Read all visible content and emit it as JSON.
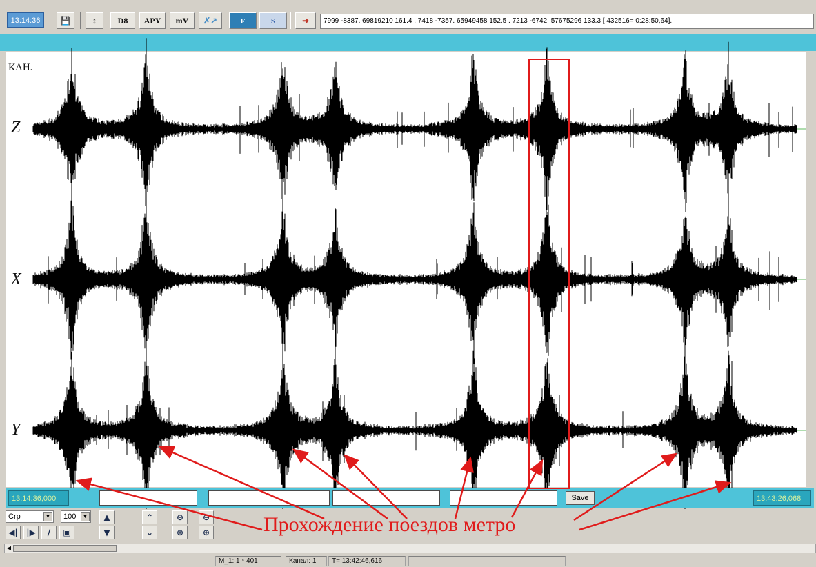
{
  "toolbar": {
    "time": "13:14:36",
    "buttons": [
      "D8",
      "APY",
      "mV"
    ],
    "info_text": "7999 -8387. 69819210  161.4 . 7418 -7357. 65949458  152.5 . 7213 -6742. 57675296  133.3 [ 432516= 0:28:50,64]."
  },
  "plot": {
    "channel_header": "КАН.",
    "channels": [
      "Z",
      "X",
      "Y"
    ]
  },
  "status_row": {
    "start_time": "13:14:36,000",
    "end_time": "13:43:26,068",
    "save_label": "Save"
  },
  "controls": {
    "mode_select": "Crp",
    "scale_select": "100"
  },
  "status_bar": {
    "scale": "M_1: 1 * 401",
    "channel": "Канал: 1",
    "time": "T= 13:42:46,616"
  },
  "annotation": {
    "caption": "Прохождение поездов метро",
    "color": "#e01b1b"
  },
  "icons": [
    "save-icon",
    "vertical-move-icon",
    "marker-icon",
    "filter-icon",
    "spectrum-icon",
    "exit-icon",
    "zoom-in-icon",
    "zoom-out-icon"
  ]
}
